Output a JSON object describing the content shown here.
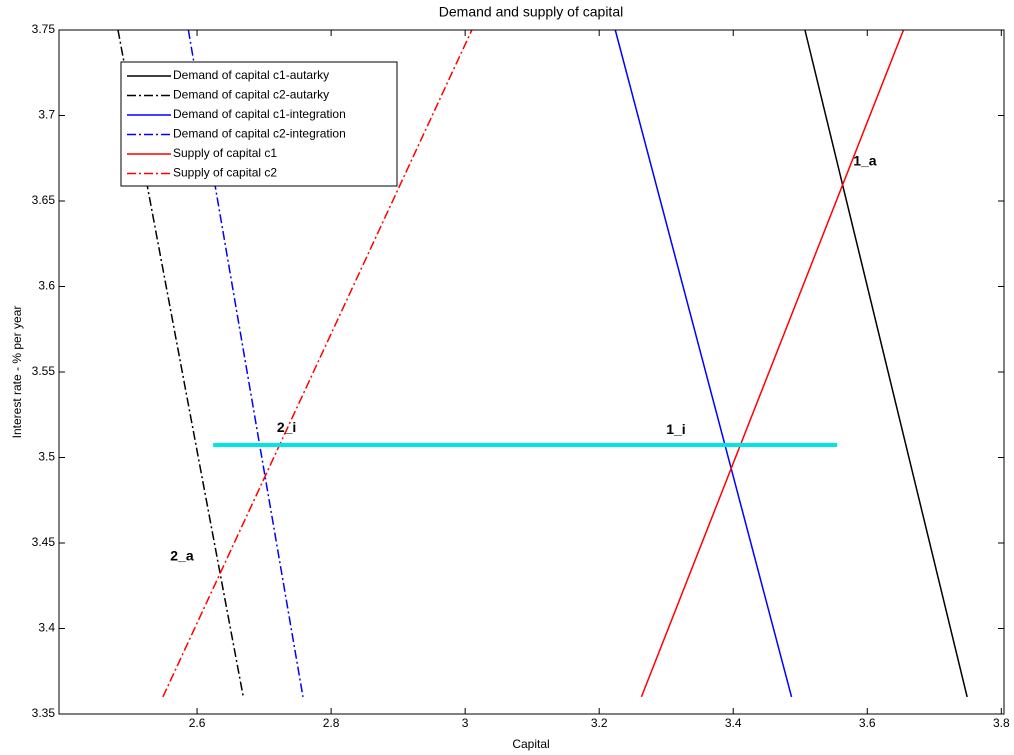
{
  "chart_data": {
    "type": "line",
    "title": "Demand and supply of capital",
    "x_label": "Capital",
    "y_label": "Interest rate - % per year",
    "xlim": [
      2.394,
      3.804
    ],
    "ylim": [
      3.35,
      3.75
    ],
    "xticks": [
      2.6,
      2.8,
      3,
      3.2,
      3.4,
      3.6,
      3.8
    ],
    "yticks": [
      3.35,
      3.4,
      3.45,
      3.5,
      3.55,
      3.6,
      3.65,
      3.7,
      3.75
    ],
    "legend_position": "upper-left",
    "series": [
      {
        "name": "Demand of capital c1-autarky",
        "color": "#000000",
        "style": "solid",
        "x": [
          3.507,
          3.749
        ],
        "values": [
          3.75,
          3.36
        ]
      },
      {
        "name": "Demand of capital c2-autarky",
        "color": "#000000",
        "style": "dashdot",
        "x": [
          2.482,
          2.669
        ],
        "values": [
          3.75,
          3.36
        ]
      },
      {
        "name": "Demand of capital c1-integration",
        "color": "#0000ff",
        "style": "solid",
        "x": [
          3.224,
          3.487
        ],
        "values": [
          3.75,
          3.36
        ]
      },
      {
        "name": "Demand of capital c2-integration",
        "color": "#0000ff",
        "style": "dashdot",
        "x": [
          2.587,
          2.758
        ],
        "values": [
          3.75,
          3.36
        ]
      },
      {
        "name": "Supply of capital c1",
        "color": "#ff0000",
        "style": "solid",
        "x": [
          3.263,
          3.654
        ],
        "values": [
          3.36,
          3.75
        ]
      },
      {
        "name": "Supply of capital c2",
        "color": "#ff0000",
        "style": "dashdot",
        "x": [
          2.549,
          3.01
        ],
        "values": [
          3.36,
          3.75
        ]
      }
    ],
    "hline": {
      "color": "#00e5e5",
      "y": 3.5073,
      "x": [
        2.624,
        3.555
      ]
    },
    "annotations": [
      {
        "text": "1_a",
        "x": 3.579,
        "y": 3.673
      },
      {
        "text": "1_i",
        "x": 3.3,
        "y": 3.516
      },
      {
        "text": "2_i",
        "x": 2.719,
        "y": 3.517
      },
      {
        "text": "2_a",
        "x": 2.56,
        "y": 3.442
      }
    ]
  }
}
